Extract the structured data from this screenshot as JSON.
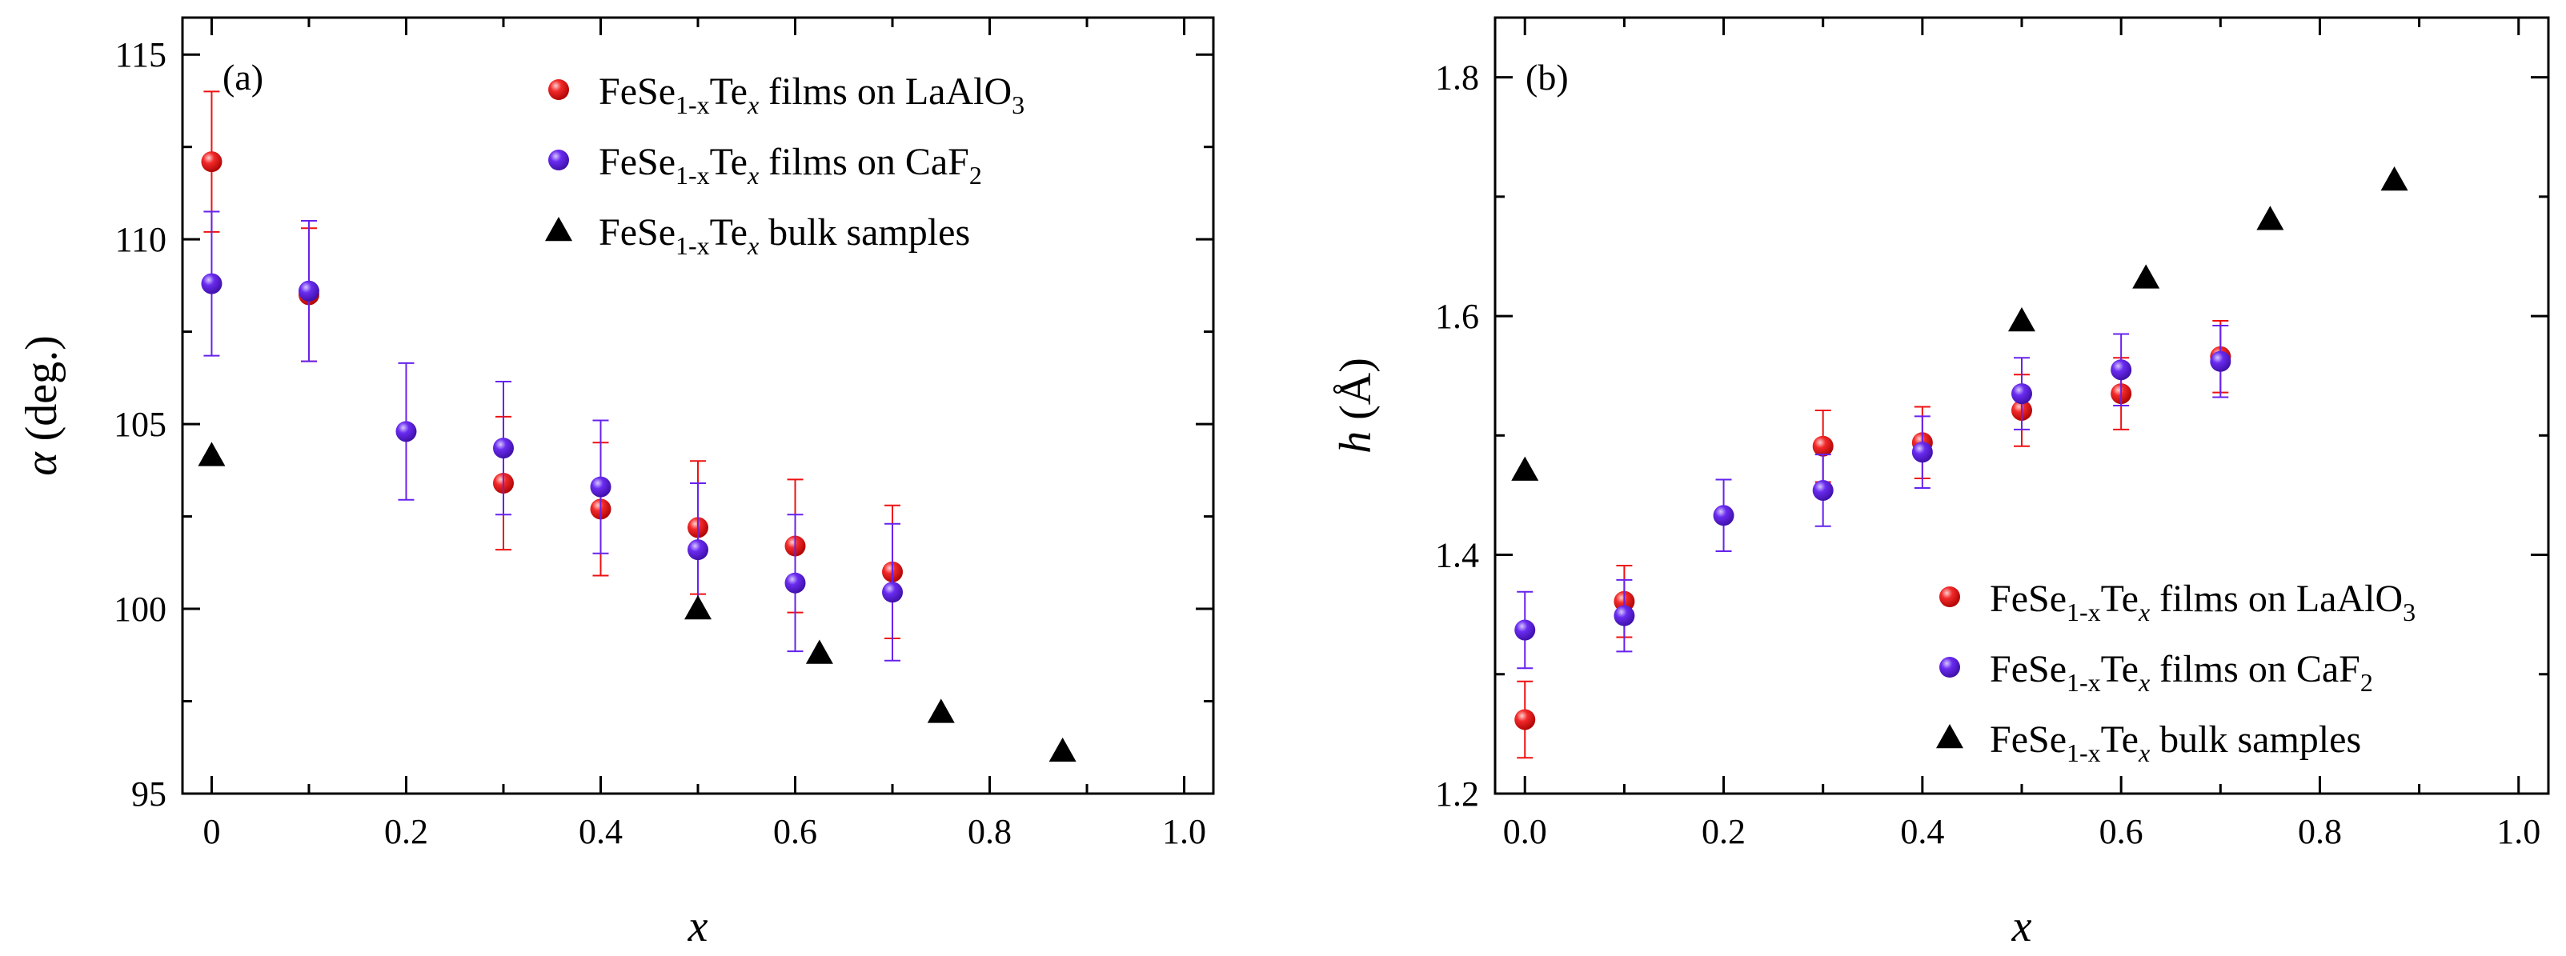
{
  "chart_data": [
    {
      "type": "scatter",
      "panel_label": "(a)",
      "xlabel": "x",
      "ylabel_symbol": "α",
      "ylabel_unit": "(deg.)",
      "xlim": [
        -0.03,
        1.03
      ],
      "ylim": [
        95,
        116
      ],
      "xticks": [
        0,
        0.2,
        0.4,
        0.6,
        0.8,
        1.0
      ],
      "xtick_labels": [
        "0",
        "0.2",
        "0.4",
        "0.6",
        "0.8",
        "1.0"
      ],
      "yticks": [
        95,
        100,
        105,
        110,
        115
      ],
      "ytick_labels": [
        "95",
        "100",
        "105",
        "110",
        "115"
      ],
      "legend_position": "top-right",
      "series": [
        {
          "name": "FeSe1-xTex films on LaAlO3",
          "legend": {
            "base": "FeSe",
            "sub1": "1-x",
            "mid": "Te",
            "sub2": "x",
            "rest": " films on LaAlO",
            "sub3": "3"
          },
          "color": "#ee1111",
          "marker": "circle",
          "x": [
            0,
            0.1,
            0.3,
            0.4,
            0.5,
            0.6,
            0.7
          ],
          "y": [
            112.1,
            108.5,
            103.4,
            102.7,
            102.2,
            101.7,
            101.0
          ],
          "err": [
            1.9,
            1.8,
            1.8,
            1.8,
            1.8,
            1.8,
            1.8
          ]
        },
        {
          "name": "FeSe1-xTex films on CaF2",
          "legend": {
            "base": "FeSe",
            "sub1": "1-x",
            "mid": "Te",
            "sub2": "x",
            "rest": " films on CaF",
            "sub3": "2"
          },
          "color": "#6622ee",
          "marker": "circle",
          "x": [
            0,
            0.1,
            0.2,
            0.3,
            0.4,
            0.5,
            0.6,
            0.7
          ],
          "y": [
            108.8,
            108.6,
            104.8,
            104.35,
            103.3,
            101.6,
            100.7,
            100.45
          ],
          "err": [
            1.95,
            1.9,
            1.85,
            1.8,
            1.8,
            1.8,
            1.85,
            1.85
          ]
        },
        {
          "name": "FeSe1-xTex bulk samples",
          "legend": {
            "base": "FeSe",
            "sub1": "1-x",
            "mid": "Te",
            "sub2": "x",
            "rest": " bulk samples",
            "sub3": ""
          },
          "color": "#000000",
          "marker": "triangle",
          "x": [
            0,
            0.5,
            0.625,
            0.75,
            0.875
          ],
          "y": [
            104.15,
            100.0,
            98.8,
            97.2,
            96.15
          ]
        }
      ]
    },
    {
      "type": "scatter",
      "panel_label": "(b)",
      "xlabel": "x",
      "ylabel_symbol": "h",
      "ylabel_unit": "(Å)",
      "xlim": [
        -0.03,
        1.03
      ],
      "ylim": [
        1.2,
        1.85
      ],
      "xticks": [
        0,
        0.2,
        0.4,
        0.6,
        0.8,
        1.0
      ],
      "xtick_labels": [
        "0.0",
        "0.2",
        "0.4",
        "0.6",
        "0.8",
        "1.0"
      ],
      "yticks": [
        1.2,
        1.4,
        1.6,
        1.8
      ],
      "ytick_labels": [
        "1.2",
        "1.4",
        "1.6",
        "1.8"
      ],
      "legend_position": "bottom-right",
      "series": [
        {
          "name": "FeSe1-xTex films on LaAlO3",
          "legend": {
            "base": "FeSe",
            "sub1": "1-x",
            "mid": "Te",
            "sub2": "x",
            "rest": " films on LaAlO",
            "sub3": "3"
          },
          "color": "#ee1111",
          "marker": "circle",
          "x": [
            0,
            0.1,
            0.3,
            0.4,
            0.5,
            0.6,
            0.7
          ],
          "y": [
            1.262,
            1.361,
            1.491,
            1.494,
            1.521,
            1.535,
            1.566
          ],
          "err": [
            0.032,
            0.03,
            0.03,
            0.03,
            0.03,
            0.03,
            0.03
          ]
        },
        {
          "name": "FeSe1-xTex films on CaF2",
          "legend": {
            "base": "FeSe",
            "sub1": "1-x",
            "mid": "Te",
            "sub2": "x",
            "rest": " films on CaF",
            "sub3": "2"
          },
          "color": "#6622ee",
          "marker": "circle",
          "x": [
            0,
            0.1,
            0.2,
            0.3,
            0.4,
            0.5,
            0.6,
            0.7
          ],
          "y": [
            1.337,
            1.349,
            1.433,
            1.454,
            1.486,
            1.535,
            1.555,
            1.562
          ],
          "err": [
            0.032,
            0.03,
            0.03,
            0.03,
            0.03,
            0.03,
            0.03,
            0.03
          ]
        },
        {
          "name": "FeSe1-xTex bulk samples",
          "legend": {
            "base": "FeSe",
            "sub1": "1-x",
            "mid": "Te",
            "sub2": "x",
            "rest": " bulk samples",
            "sub3": ""
          },
          "color": "#000000",
          "marker": "triangle",
          "x": [
            0,
            0.5,
            0.625,
            0.75,
            0.875
          ],
          "y": [
            1.471,
            1.596,
            1.632,
            1.681,
            1.714
          ]
        }
      ]
    }
  ]
}
